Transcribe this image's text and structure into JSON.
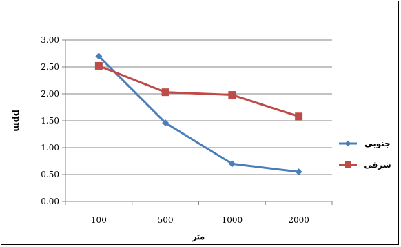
{
  "chart_data": {
    "type": "line",
    "title": "",
    "xlabel": "متر",
    "ylabel": "ppm",
    "categories": [
      "100",
      "500",
      "1000",
      "2000"
    ],
    "ylim": [
      0,
      3
    ],
    "yticks": [
      "0.00",
      "0.50",
      "1.00",
      "1.50",
      "2.00",
      "2.50",
      "3.00"
    ],
    "grid": true,
    "legend_position": "right",
    "series": [
      {
        "name": "جنوبی",
        "color": "#4a7ebb",
        "marker": "diamond",
        "values": [
          2.7,
          1.46,
          0.7,
          0.55
        ]
      },
      {
        "name": "شرقی",
        "color": "#be4b48",
        "marker": "square",
        "values": [
          2.52,
          2.03,
          1.98,
          1.58
        ]
      }
    ]
  }
}
